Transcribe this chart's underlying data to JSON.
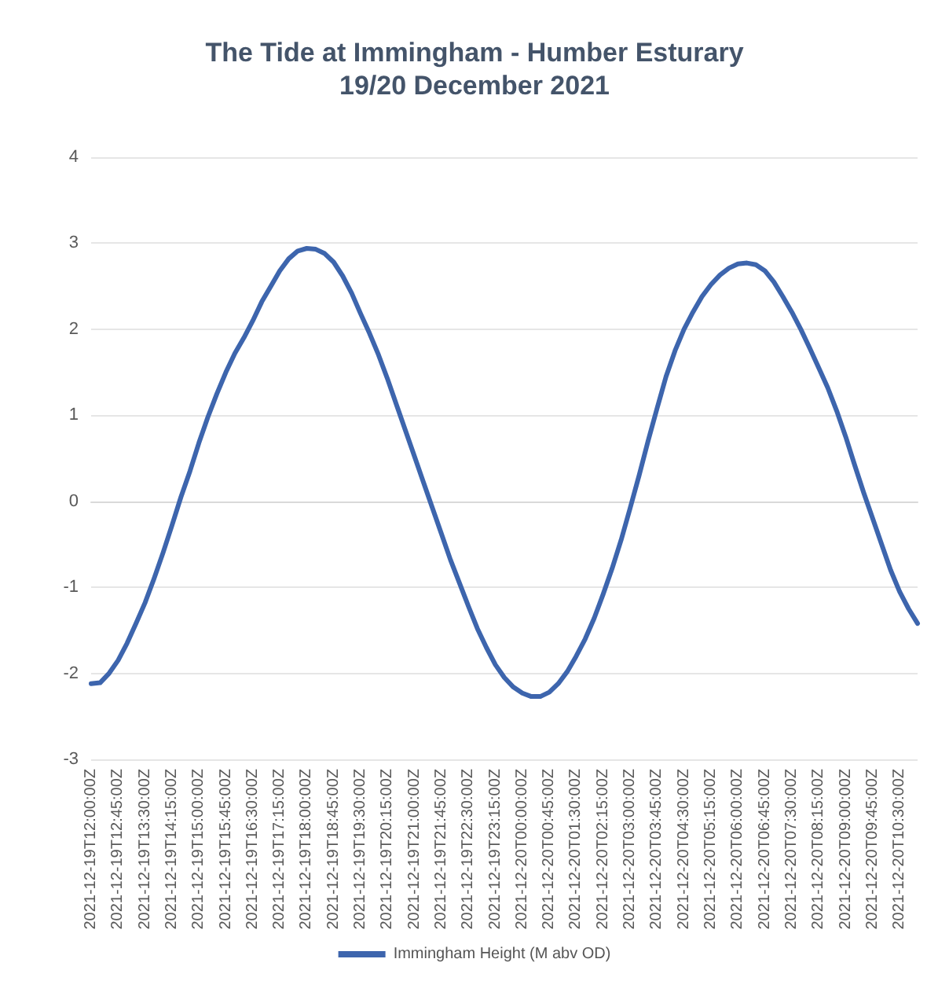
{
  "chart_data": {
    "type": "line",
    "title": "The Tide at Immingham - Humber Esturary",
    "subtitle": "19/20 December 2021",
    "categories": [
      "2021-12-19T12:00:00Z",
      null,
      null,
      "2021-12-19T12:45:00Z",
      null,
      null,
      "2021-12-19T13:30:00Z",
      null,
      null,
      "2021-12-19T14:15:00Z",
      null,
      null,
      "2021-12-19T15:00:00Z",
      null,
      null,
      "2021-12-19T15:45:00Z",
      null,
      null,
      "2021-12-19T16:30:00Z",
      null,
      null,
      "2021-12-19T17:15:00Z",
      null,
      null,
      "2021-12-19T18:00:00Z",
      null,
      null,
      "2021-12-19T18:45:00Z",
      null,
      null,
      "2021-12-19T19:30:00Z",
      null,
      null,
      "2021-12-19T20:15:00Z",
      null,
      null,
      "2021-12-19T21:00:00Z",
      null,
      null,
      "2021-12-19T21:45:00Z",
      null,
      null,
      "2021-12-19T22:30:00Z",
      null,
      null,
      "2021-12-19T23:15:00Z",
      null,
      null,
      "2021-12-20T00:00:00Z",
      null,
      null,
      "2021-12-20T00:45:00Z",
      null,
      null,
      "2021-12-20T01:30:00Z",
      null,
      null,
      "2021-12-20T02:15:00Z",
      null,
      null,
      "2021-12-20T03:00:00Z",
      null,
      null,
      "2021-12-20T03:45:00Z",
      null,
      null,
      "2021-12-20T04:30:00Z",
      null,
      null,
      "2021-12-20T05:15:00Z",
      null,
      null,
      "2021-12-20T06:00:00Z",
      null,
      null,
      "2021-12-20T06:45:00Z",
      null,
      null,
      "2021-12-20T07:30:00Z",
      null,
      null,
      "2021-12-20T08:15:00Z",
      null,
      null,
      "2021-12-20T09:00:00Z",
      null,
      null,
      "2021-12-20T09:45:00Z",
      null,
      null,
      "2021-12-20T10:30:00Z",
      null,
      null
    ],
    "series": [
      {
        "name": "Immingham Height (M abv OD)",
        "color": "#3d65ad",
        "values": [
          -2.12,
          -2.11,
          -2.0,
          -1.85,
          -1.65,
          -1.42,
          -1.18,
          -0.9,
          -0.6,
          -0.28,
          0.05,
          0.35,
          0.68,
          0.98,
          1.25,
          1.5,
          1.72,
          1.9,
          2.1,
          2.32,
          2.5,
          2.68,
          2.82,
          2.91,
          2.94,
          2.93,
          2.88,
          2.78,
          2.62,
          2.42,
          2.18,
          1.95,
          1.7,
          1.42,
          1.12,
          0.82,
          0.52,
          0.22,
          -0.08,
          -0.38,
          -0.68,
          -0.95,
          -1.22,
          -1.48,
          -1.7,
          -1.9,
          -2.05,
          -2.16,
          -2.23,
          -2.27,
          -2.27,
          -2.22,
          -2.12,
          -1.98,
          -1.8,
          -1.6,
          -1.36,
          -1.08,
          -0.78,
          -0.45,
          -0.08,
          0.3,
          0.7,
          1.08,
          1.45,
          1.75,
          2.0,
          2.2,
          2.38,
          2.52,
          2.63,
          2.71,
          2.76,
          2.77,
          2.75,
          2.68,
          2.55,
          2.38,
          2.2,
          2.0,
          1.78,
          1.55,
          1.32,
          1.05,
          0.75,
          0.42,
          0.1,
          -0.2,
          -0.5,
          -0.8,
          -1.05,
          -1.25,
          -1.42
        ]
      }
    ],
    "ylim": [
      -3,
      4
    ],
    "yticks": [
      -3,
      -2,
      -1,
      0,
      1,
      2,
      3,
      4
    ],
    "grid": "y",
    "legend": "bottom",
    "marker": "none",
    "line_style": "solid"
  }
}
